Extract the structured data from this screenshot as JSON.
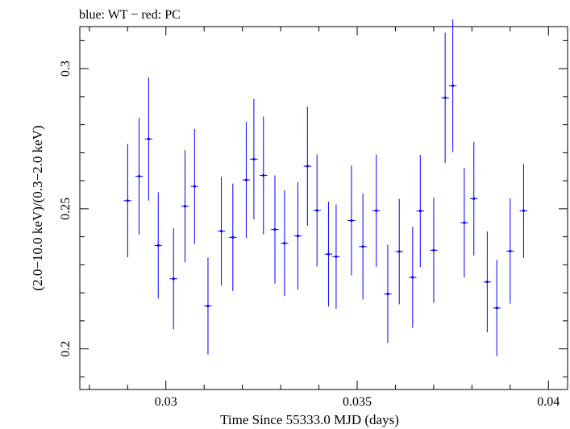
{
  "chart_data": {
    "type": "scatter",
    "title": "blue: WT − red: PC",
    "xlabel": "Time Since 55333.0 MJD (days)",
    "ylabel": "(2.0−10.0 keV)/(0.3−2.0 keV)",
    "xlim": [
      0.02775,
      0.0405
    ],
    "ylim": [
      0.1855,
      0.315
    ],
    "x_ticks": [
      {
        "value": 0.03,
        "label": "0.03"
      },
      {
        "value": 0.035,
        "label": "0.035"
      },
      {
        "value": 0.04,
        "label": "0.04"
      }
    ],
    "y_ticks": [
      {
        "value": 0.2,
        "label": "0.2"
      },
      {
        "value": 0.25,
        "label": "0.25"
      },
      {
        "value": 0.3,
        "label": "0.3"
      }
    ],
    "x_minor_step": 0.001,
    "y_minor_step": 0.01,
    "grid": false,
    "series": [
      {
        "color": "#0000ff",
        "x_err": 0.0001,
        "points": [
          {
            "x": 0.029,
            "y": 0.2529,
            "err": 0.0202
          },
          {
            "x": 0.0293,
            "y": 0.2616,
            "err": 0.0208
          },
          {
            "x": 0.02955,
            "y": 0.2749,
            "err": 0.022
          },
          {
            "x": 0.0298,
            "y": 0.2369,
            "err": 0.019
          },
          {
            "x": 0.0302,
            "y": 0.225,
            "err": 0.018
          },
          {
            "x": 0.0305,
            "y": 0.2509,
            "err": 0.02
          },
          {
            "x": 0.03075,
            "y": 0.258,
            "err": 0.0205
          },
          {
            "x": 0.0311,
            "y": 0.2153,
            "err": 0.0173
          },
          {
            "x": 0.03145,
            "y": 0.242,
            "err": 0.0194
          },
          {
            "x": 0.03175,
            "y": 0.2398,
            "err": 0.0192
          },
          {
            "x": 0.0321,
            "y": 0.2603,
            "err": 0.0207
          },
          {
            "x": 0.0323,
            "y": 0.2677,
            "err": 0.0215
          },
          {
            "x": 0.03255,
            "y": 0.2619,
            "err": 0.021
          },
          {
            "x": 0.03285,
            "y": 0.2426,
            "err": 0.0193
          },
          {
            "x": 0.0331,
            "y": 0.2377,
            "err": 0.0189
          },
          {
            "x": 0.03345,
            "y": 0.2403,
            "err": 0.0192
          },
          {
            "x": 0.0337,
            "y": 0.2652,
            "err": 0.0212
          },
          {
            "x": 0.03395,
            "y": 0.2494,
            "err": 0.02
          },
          {
            "x": 0.03425,
            "y": 0.2338,
            "err": 0.0187
          },
          {
            "x": 0.03445,
            "y": 0.2329,
            "err": 0.0186
          },
          {
            "x": 0.03485,
            "y": 0.2458,
            "err": 0.0196
          },
          {
            "x": 0.03515,
            "y": 0.2365,
            "err": 0.0189
          },
          {
            "x": 0.0355,
            "y": 0.2493,
            "err": 0.02
          },
          {
            "x": 0.0358,
            "y": 0.2196,
            "err": 0.0175
          },
          {
            "x": 0.0361,
            "y": 0.2347,
            "err": 0.0188
          },
          {
            "x": 0.03645,
            "y": 0.2255,
            "err": 0.018
          },
          {
            "x": 0.03665,
            "y": 0.2492,
            "err": 0.02
          },
          {
            "x": 0.037,
            "y": 0.2352,
            "err": 0.0188
          },
          {
            "x": 0.0373,
            "y": 0.2896,
            "err": 0.0232
          },
          {
            "x": 0.0375,
            "y": 0.2939,
            "err": 0.0237
          },
          {
            "x": 0.0378,
            "y": 0.245,
            "err": 0.0196
          },
          {
            "x": 0.03805,
            "y": 0.2536,
            "err": 0.0203
          },
          {
            "x": 0.0384,
            "y": 0.2239,
            "err": 0.018
          },
          {
            "x": 0.03865,
            "y": 0.2146,
            "err": 0.0172
          },
          {
            "x": 0.039,
            "y": 0.2349,
            "err": 0.0188
          },
          {
            "x": 0.03935,
            "y": 0.2493,
            "err": 0.0168
          }
        ]
      }
    ]
  }
}
